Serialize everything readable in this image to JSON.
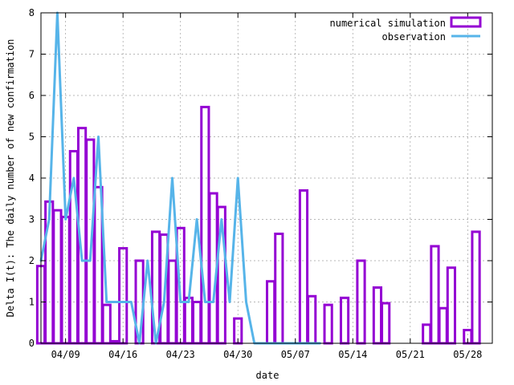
{
  "chart_data": {
    "type": "bar",
    "title": "",
    "xlabel": "date",
    "ylabel": "Delta I(t): The daily number of new confirmation",
    "x_ticks": [
      "04/09",
      "04/16",
      "04/23",
      "04/30",
      "05/07",
      "05/14",
      "05/21",
      "05/28"
    ],
    "y_ticks": [
      "0",
      "1",
      "2",
      "3",
      "4",
      "5",
      "6",
      "7",
      "8"
    ],
    "ylim": [
      0,
      8
    ],
    "xlim": [
      "04/06",
      "05/31"
    ],
    "grid": true,
    "legend_position": "top-right",
    "series": [
      {
        "name": "numerical simulation",
        "kind": "bar",
        "color": "#9400D3",
        "points": [
          [
            "04/06",
            1.87
          ],
          [
            "04/07",
            3.43
          ],
          [
            "04/08",
            3.22
          ],
          [
            "04/09",
            3.06
          ],
          [
            "04/10",
            4.65
          ],
          [
            "04/11",
            5.21
          ],
          [
            "04/12",
            4.93
          ],
          [
            "04/13",
            3.78
          ],
          [
            "04/14",
            0.93
          ],
          [
            "04/15",
            0.05
          ],
          [
            "04/16",
            2.3
          ],
          [
            "04/17",
            0.0
          ],
          [
            "04/18",
            2.0
          ],
          [
            "04/19",
            0.0
          ],
          [
            "04/20",
            2.7
          ],
          [
            "04/21",
            2.63
          ],
          [
            "04/22",
            2.0
          ],
          [
            "04/23",
            2.79
          ],
          [
            "04/24",
            1.1
          ],
          [
            "04/25",
            1.0
          ],
          [
            "04/26",
            5.72
          ],
          [
            "04/27",
            3.63
          ],
          [
            "04/28",
            3.3
          ],
          [
            "04/29",
            0.0
          ],
          [
            "04/30",
            0.6
          ],
          [
            "05/01",
            0.0
          ],
          [
            "05/02",
            0.0
          ],
          [
            "05/03",
            0.0
          ],
          [
            "05/04",
            1.5
          ],
          [
            "05/05",
            2.65
          ],
          [
            "05/06",
            0.0
          ],
          [
            "05/07",
            0.0
          ],
          [
            "05/08",
            3.7
          ],
          [
            "05/09",
            1.14
          ],
          [
            "05/10",
            0.0
          ],
          [
            "05/11",
            0.93
          ],
          [
            "05/12",
            0.0
          ],
          [
            "05/13",
            1.1
          ],
          [
            "05/14",
            0.0
          ],
          [
            "05/15",
            2.0
          ],
          [
            "05/16",
            0.0
          ],
          [
            "05/17",
            1.35
          ],
          [
            "05/18",
            0.97
          ],
          [
            "05/19",
            0.0
          ],
          [
            "05/20",
            0.0
          ],
          [
            "05/21",
            0.0
          ],
          [
            "05/22",
            0.0
          ],
          [
            "05/23",
            0.45
          ],
          [
            "05/24",
            2.35
          ],
          [
            "05/25",
            0.85
          ],
          [
            "05/26",
            1.83
          ],
          [
            "05/27",
            0.0
          ],
          [
            "05/28",
            0.32
          ],
          [
            "05/29",
            2.7
          ]
        ]
      },
      {
        "name": "observation",
        "kind": "line",
        "color": "#56B4E9",
        "points": [
          [
            "04/06",
            2.0
          ],
          [
            "04/07",
            3.0
          ],
          [
            "04/08",
            8.0
          ],
          [
            "04/09",
            3.0
          ],
          [
            "04/10",
            4.0
          ],
          [
            "04/11",
            2.0
          ],
          [
            "04/12",
            2.0
          ],
          [
            "04/13",
            5.0
          ],
          [
            "04/14",
            1.0
          ],
          [
            "04/15",
            1.0
          ],
          [
            "04/16",
            1.0
          ],
          [
            "04/17",
            1.0
          ],
          [
            "04/18",
            0.0
          ],
          [
            "04/19",
            2.0
          ],
          [
            "04/20",
            0.0
          ],
          [
            "04/21",
            1.0
          ],
          [
            "04/22",
            4.0
          ],
          [
            "04/23",
            1.0
          ],
          [
            "04/24",
            1.0
          ],
          [
            "04/25",
            3.0
          ],
          [
            "04/26",
            1.0
          ],
          [
            "04/27",
            1.0
          ],
          [
            "04/28",
            3.0
          ],
          [
            "04/29",
            1.0
          ],
          [
            "04/30",
            4.0
          ],
          [
            "05/01",
            1.0
          ],
          [
            "05/02",
            0.0
          ],
          [
            "05/03",
            0.0
          ],
          [
            "05/04",
            0.0
          ],
          [
            "05/05",
            0.0
          ],
          [
            "05/06",
            0.0
          ],
          [
            "05/07",
            0.0
          ],
          [
            "05/08",
            0.0
          ],
          [
            "05/09",
            0.0
          ],
          [
            "05/10",
            0.0
          ]
        ]
      }
    ]
  }
}
